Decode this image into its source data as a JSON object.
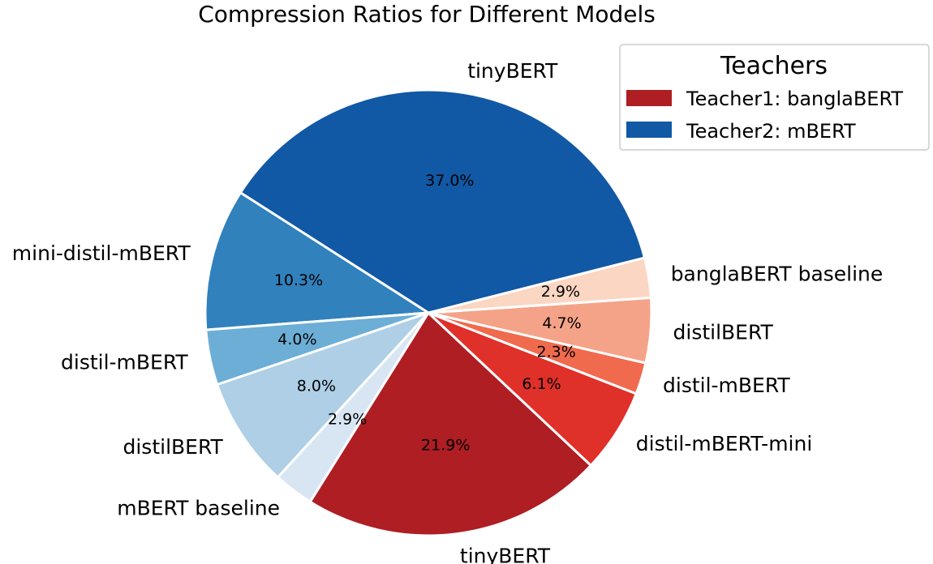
{
  "chart_data": {
    "type": "pie",
    "title": "Compression Ratios for Different Models",
    "start_angle_deg": 238,
    "direction": "counterclockwise",
    "slices": [
      {
        "label": "tinyBERT",
        "value": 21.9,
        "pct_label": "21.9%",
        "group": "Teacher1: banglaBERT",
        "color": "#AE1E23"
      },
      {
        "label": "distil-mBERT-mini",
        "value": 6.1,
        "pct_label": "6.1%",
        "group": "Teacher1: banglaBERT",
        "color": "#E0302A"
      },
      {
        "label": "distil-mBERT",
        "value": 2.3,
        "pct_label": "2.3%",
        "group": "Teacher1: banglaBERT",
        "color": "#F06A4D"
      },
      {
        "label": "distilBERT",
        "value": 4.7,
        "pct_label": "4.7%",
        "group": "Teacher1: banglaBERT",
        "color": "#F5A388"
      },
      {
        "label": "banglaBERT baseline",
        "value": 2.9,
        "pct_label": "2.9%",
        "group": "Teacher1: banglaBERT",
        "color": "#FBD6C3"
      },
      {
        "label": "tinyBERT",
        "value": 37.0,
        "pct_label": "37.0%",
        "group": "Teacher2: mBERT",
        "color": "#1158A5"
      },
      {
        "label": "mini-distil-mBERT",
        "value": 10.3,
        "pct_label": "10.3%",
        "group": "Teacher2: mBERT",
        "color": "#3181BD"
      },
      {
        "label": "distil-mBERT",
        "value": 4.0,
        "pct_label": "4.0%",
        "group": "Teacher2: mBERT",
        "color": "#6CAED6"
      },
      {
        "label": "distilBERT",
        "value": 8.0,
        "pct_label": "8.0%",
        "group": "Teacher2: mBERT",
        "color": "#AECFE5"
      },
      {
        "label": "mBERT baseline",
        "value": 2.9,
        "pct_label": "2.9%",
        "group": "Teacher2: mBERT",
        "color": "#D8E6F3"
      }
    ],
    "legend": {
      "title": "Teachers",
      "placement": "top-right",
      "items": [
        {
          "label": "Teacher1: banglaBERT",
          "color": "#AE1E23"
        },
        {
          "label": "Teacher2: mBERT",
          "color": "#1158A5"
        }
      ]
    }
  }
}
